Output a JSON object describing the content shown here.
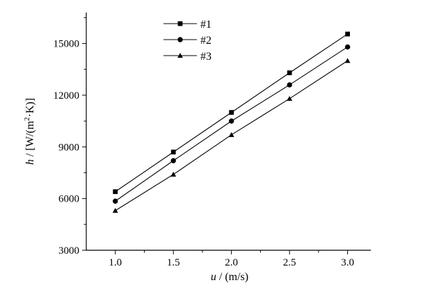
{
  "chart_data": {
    "type": "line",
    "title": "",
    "xlabel_var": "u",
    "xlabel_unit": " / (m/s)",
    "ylabel_var": "h",
    "ylabel_unit_pre": " / [W/(m",
    "ylabel_unit_sup": "2",
    "ylabel_unit_post": "·K)]",
    "x": [
      1.0,
      1.5,
      2.0,
      2.5,
      3.0
    ],
    "x_tick_labels": [
      "1.0",
      "1.5",
      "2.0",
      "2.5",
      "3.0"
    ],
    "y_tick_labels": [
      "3000",
      "6000",
      "9000",
      "12000",
      "15000"
    ],
    "y_ticks": [
      3000,
      6000,
      9000,
      12000,
      15000
    ],
    "xlim": [
      0.75,
      3.2
    ],
    "ylim": [
      3000,
      16800
    ],
    "grid": false,
    "legend_position": "top-center",
    "series": [
      {
        "name": "#1",
        "marker": "square",
        "values": [
          6400,
          8700,
          11000,
          13300,
          15550
        ]
      },
      {
        "name": "#2",
        "marker": "circle",
        "values": [
          5850,
          8200,
          10500,
          12600,
          14800
        ]
      },
      {
        "name": "#3",
        "marker": "triangle",
        "values": [
          5300,
          7400,
          9700,
          11800,
          14000
        ]
      }
    ]
  }
}
